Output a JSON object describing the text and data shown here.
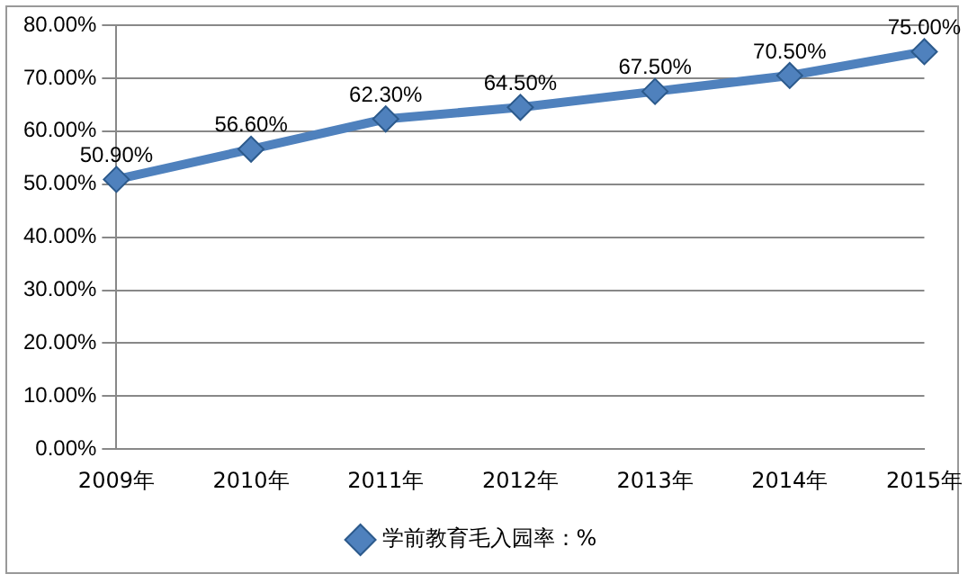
{
  "chart_data": {
    "type": "line",
    "categories": [
      "2009年",
      "2010年",
      "2011年",
      "2012年",
      "2013年",
      "2014年",
      "2015年"
    ],
    "series": [
      {
        "name": "学前教育毛入园率：%",
        "color": "#4f81bd",
        "values": [
          50.9,
          56.6,
          62.3,
          64.5,
          67.5,
          70.5,
          75.0
        ],
        "value_labels": [
          "50.90%",
          "56.60%",
          "62.30%",
          "64.50%",
          "67.50%",
          "70.50%",
          "75.00%"
        ]
      }
    ],
    "ylim": [
      0,
      80
    ],
    "yticks": [
      {
        "value": 0,
        "label": "0.00%"
      },
      {
        "value": 10,
        "label": "10.00%"
      },
      {
        "value": 20,
        "label": "20.00%"
      },
      {
        "value": 30,
        "label": "30.00%"
      },
      {
        "value": 40,
        "label": "40.00%"
      },
      {
        "value": 50,
        "label": "50.00%"
      },
      {
        "value": 60,
        "label": "60.00%"
      },
      {
        "value": 70,
        "label": "70.00%"
      },
      {
        "value": 80,
        "label": "80.00%"
      }
    ],
    "grid": "y",
    "legend": "bottom",
    "marker": "diamond",
    "line_style": "solid"
  }
}
